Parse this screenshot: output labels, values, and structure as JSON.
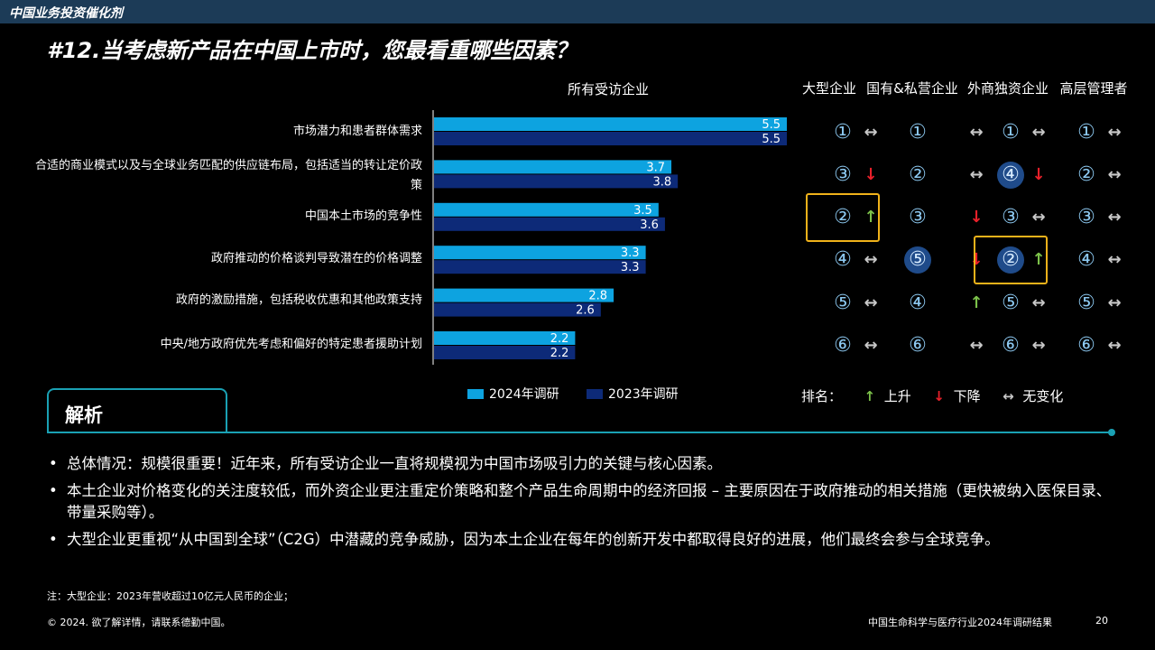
{
  "header": {
    "title": "中国业务投资催化剂"
  },
  "page_title": "#12.当考虑新产品在中国上市时，您最看重哪些因素？",
  "colors": {
    "series_2024": "#0da3e0",
    "series_2023": "#0d2a78",
    "accent": "#1aa1b4",
    "highlight_box": "#f0b21a",
    "up": "#7cc24a",
    "down": "#e8202a"
  },
  "chart_data": {
    "type": "bar",
    "orientation": "horizontal",
    "title": "所有受访企业",
    "categories": [
      "市场潜力和患者群体需求",
      "合适的商业模式以及与全球业务匹配的供应链布局，包括适当的转让定价政策",
      "中国本土市场的竞争性",
      "政府推动的价格谈判导致潜在的价格调整",
      "政府的激励措施，包括税收优惠和其他政策支持",
      "中央/地方政府优先考虑和偏好的特定患者援助计划"
    ],
    "series": [
      {
        "name": "2024年调研",
        "values": [
          5.5,
          3.7,
          3.5,
          3.3,
          2.8,
          2.2
        ]
      },
      {
        "name": "2023年调研",
        "values": [
          5.5,
          3.8,
          3.6,
          3.3,
          2.6,
          2.2
        ]
      }
    ],
    "xlim": [
      0,
      5.5
    ],
    "legend": "bottom"
  },
  "ranking": {
    "columns": [
      "大型企业",
      "国有&私营企业",
      "外商独资企业",
      "高层管理者"
    ],
    "rows": [
      [
        {
          "rank": "①",
          "trend": "flat",
          "hl": false
        },
        {
          "rank": "①",
          "trend": "flat",
          "hl": false
        },
        {
          "rank": "①",
          "trend": "flat",
          "hl": false
        },
        {
          "rank": "①",
          "trend": "flat",
          "hl": false
        }
      ],
      [
        {
          "rank": "③",
          "trend": "down",
          "hl": false
        },
        {
          "rank": "②",
          "trend": "flat",
          "hl": false
        },
        {
          "rank": "④",
          "trend": "down",
          "hl": true
        },
        {
          "rank": "②",
          "trend": "flat",
          "hl": false
        }
      ],
      [
        {
          "rank": "②",
          "trend": "up",
          "hl": false
        },
        {
          "rank": "③",
          "trend": "down",
          "hl": false
        },
        {
          "rank": "③",
          "trend": "flat",
          "hl": false
        },
        {
          "rank": "③",
          "trend": "flat",
          "hl": false
        }
      ],
      [
        {
          "rank": "④",
          "trend": "flat",
          "hl": false
        },
        {
          "rank": "⑤",
          "trend": "down",
          "hl": true
        },
        {
          "rank": "②",
          "trend": "up",
          "hl": true
        },
        {
          "rank": "④",
          "trend": "flat",
          "hl": false
        }
      ],
      [
        {
          "rank": "⑤",
          "trend": "flat",
          "hl": false
        },
        {
          "rank": "④",
          "trend": "up",
          "hl": false
        },
        {
          "rank": "⑤",
          "trend": "flat",
          "hl": false
        },
        {
          "rank": "⑤",
          "trend": "flat",
          "hl": false
        }
      ],
      [
        {
          "rank": "⑥",
          "trend": "flat",
          "hl": false
        },
        {
          "rank": "⑥",
          "trend": "flat",
          "hl": false
        },
        {
          "rank": "⑥",
          "trend": "flat",
          "hl": false
        },
        {
          "rank": "⑥",
          "trend": "flat",
          "hl": false
        }
      ]
    ],
    "boxed": [
      {
        "row": 2,
        "col": 0
      },
      {
        "row": 3,
        "col": 2
      }
    ],
    "legend": {
      "label": "排名：",
      "up": "上升",
      "down": "下降",
      "flat": "无变化"
    }
  },
  "icons": {
    "up": "↑",
    "down": "↓",
    "flat": "↔"
  },
  "analysis": {
    "tab_label": "解析",
    "bullets": [
      "总体情况：规模很重要！近年来，所有受访企业一直将规模视为中国市场吸引力的关键与核心因素。",
      "本土企业对价格变化的关注度较低，而外资企业更注重定价策略和整个产品生命周期中的经济回报 – 主要原因在于政府推动的相关措施（更快被纳入医保目录、带量采购等）。",
      "大型企业更重视“从中国到全球”（C2G）中潜藏的竞争威胁，因为本土企业在每年的创新开发中都取得良好的进展，他们最终会参与全球竞争。"
    ]
  },
  "footer": {
    "note": "注：大型企业：2023年营收超过10亿元人民币的企业；",
    "copyright": "© 2024. 欲了解详情，请联系德勤中国。",
    "report_name": "中国生命科学与医疗行业2024年调研结果",
    "page_number": "20"
  }
}
